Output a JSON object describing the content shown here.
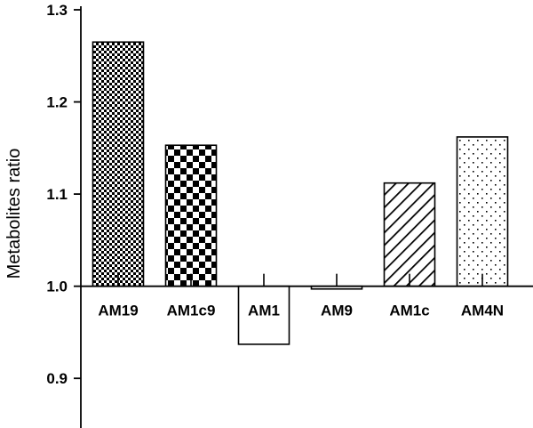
{
  "chart_data": {
    "type": "bar",
    "categories": [
      "AM19",
      "AM1c9",
      "AM1",
      "AM9",
      "AM1c",
      "AM4N"
    ],
    "values": [
      1.265,
      1.153,
      0.937,
      0.997,
      1.112,
      1.162
    ],
    "baseline": 1.0,
    "ylabel": "Metabolites ratio",
    "ylim": [
      0.85,
      1.3
    ],
    "yticks": [
      0.9,
      1.0,
      1.1,
      1.2,
      1.3
    ],
    "ytick_labels": [
      "0.9",
      "1.0",
      "1.1",
      "1.2",
      "1.3"
    ],
    "grid": false,
    "bar_patterns": [
      "fine-checker",
      "checker",
      "none",
      "none",
      "diagonal-hatch",
      "dots"
    ]
  }
}
